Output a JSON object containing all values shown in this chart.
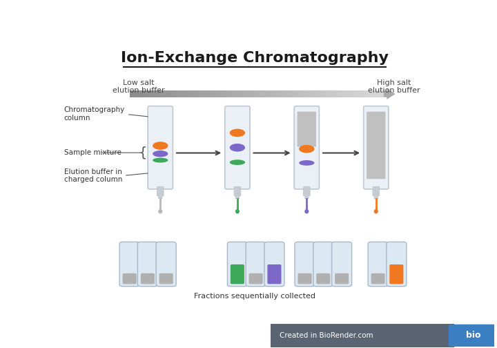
{
  "title": "Ion-Exchange Chromatography",
  "bg_color": "#ffffff",
  "arrow_label_left": "Low salt\nelution buffer",
  "arrow_label_right": "High salt\nelution buffer",
  "label_chrom": "Chromatography\ncolumn",
  "label_sample": "Sample mixture",
  "label_elution": "Elution buffer in\ncharged column",
  "bottom_label": "Fractions sequentially collected",
  "biorender_text": "Created in BioRender.com",
  "biorender_bg": "#5a6472",
  "bio_box_color": "#3a7fc1",
  "gray_fill": "#c0c0c0",
  "orange_color": "#f07820",
  "purple_color": "#7b68c8",
  "green_color": "#3daa5a",
  "tube_fill_gray": "#b0b0b0",
  "col_inner": "#eaf0f5",
  "col_border": "#c0c8d0",
  "tip_color": "#c8cdd2"
}
